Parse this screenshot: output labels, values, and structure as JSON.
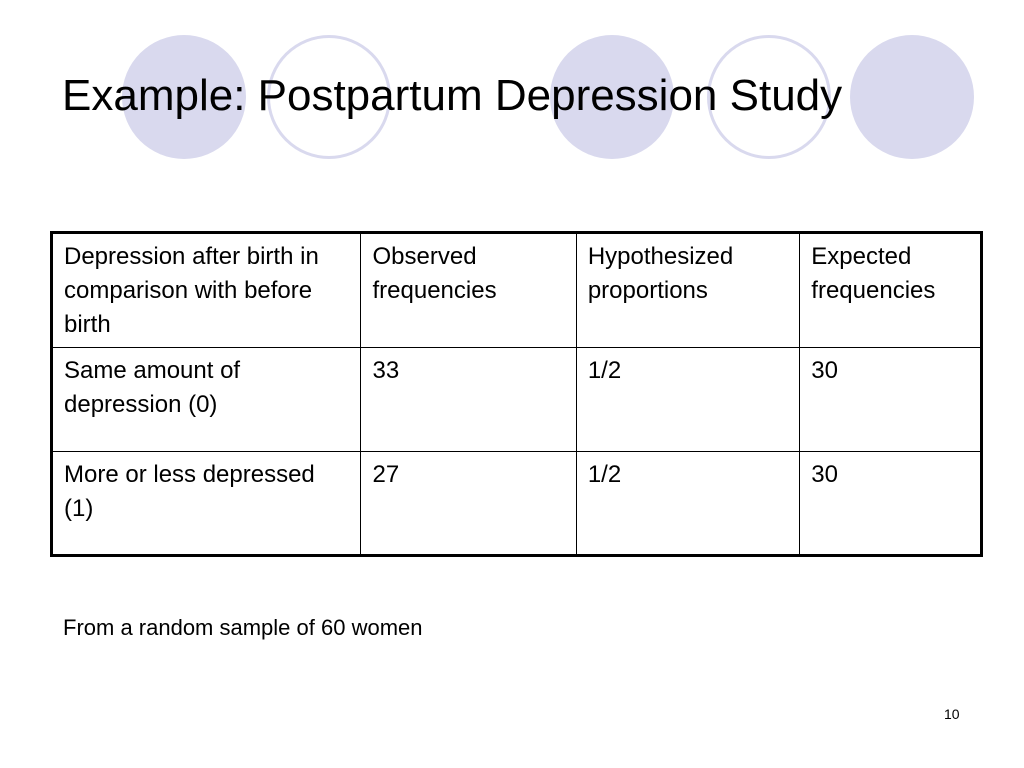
{
  "slide": {
    "title": "Example: Postpartum Depression Study",
    "table": {
      "headers": [
        "Depression after birth in comparison with before birth",
        "Observed frequencies",
        "Hypothesized proportions",
        "Expected frequencies"
      ],
      "rows": [
        [
          "Same amount of depression (0)",
          "33",
          "1/2",
          "30"
        ],
        [
          "More or less depressed (1)",
          "27",
          "1/2",
          "30"
        ]
      ]
    },
    "note": "From a random sample of 60 women",
    "page_number": "10"
  },
  "colors": {
    "circle_fill": "#d9d9ee",
    "circle_outline": "#d9d9ee",
    "text": "#000000",
    "background": "#ffffff"
  }
}
